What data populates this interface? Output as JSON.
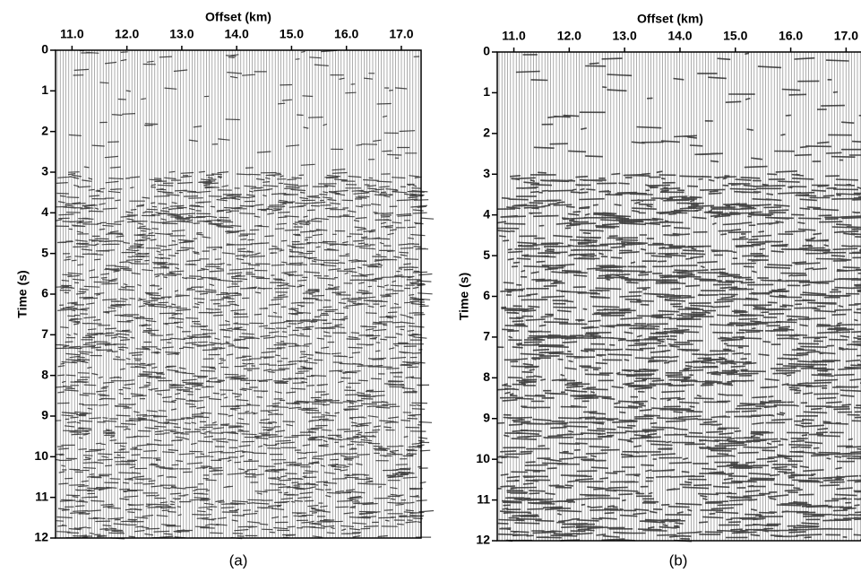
{
  "chart_data": [
    {
      "type": "seismic",
      "xlabel": "Offset (km)",
      "ylabel": "Time (s)",
      "caption": "(a)",
      "xlim": [
        10.7,
        17.36
      ],
      "ylim": [
        0,
        12
      ],
      "xticks": [
        {
          "value": 11,
          "label": "11.0"
        },
        {
          "value": 12,
          "label": "12.0"
        },
        {
          "value": 13,
          "label": "13.0"
        },
        {
          "value": 14,
          "label": "14.0"
        },
        {
          "value": 15,
          "label": "15.0"
        },
        {
          "value": 16,
          "label": "16.0"
        },
        {
          "value": 17,
          "label": "17.0"
        }
      ],
      "yticks": [
        0,
        1,
        2,
        3,
        4,
        5,
        6,
        7,
        8,
        9,
        10,
        11,
        12
      ]
    },
    {
      "type": "seismic",
      "xlabel": "Offset (km)",
      "ylabel": "Time (s)",
      "caption": "(b)",
      "xlim": [
        10.7,
        17.35
      ],
      "ylim": [
        0,
        12
      ],
      "xticks": [
        {
          "value": 11,
          "label": "11.0"
        },
        {
          "value": 12,
          "label": "12.0"
        },
        {
          "value": 13,
          "label": "13.0"
        },
        {
          "value": 14,
          "label": "14.0"
        },
        {
          "value": 15,
          "label": "15.0"
        },
        {
          "value": 16,
          "label": "16.0"
        },
        {
          "value": 17,
          "label": "17.0"
        }
      ],
      "yticks": [
        0,
        1,
        2,
        3,
        4,
        5,
        6,
        7,
        8,
        9,
        10,
        11,
        12
      ]
    }
  ]
}
